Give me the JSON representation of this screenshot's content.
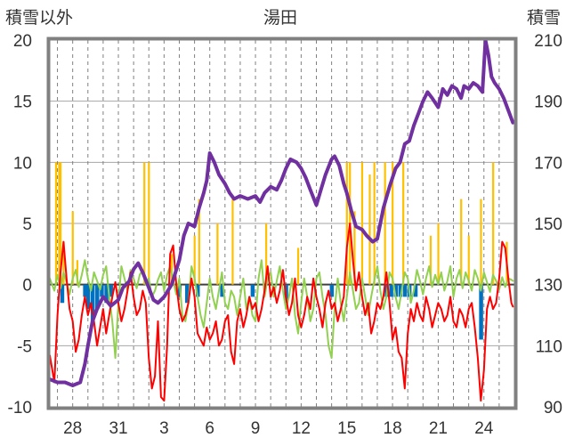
{
  "chart_data": {
    "type": "line",
    "title": "湯田",
    "y_left_label": "積雪以外",
    "y_right_label": "積雪",
    "y_left_range": [
      -10,
      20
    ],
    "y_right_range": [
      90,
      210
    ],
    "y_left_ticks": [
      "20",
      "15",
      "10",
      "5",
      "0",
      "-5",
      "-10"
    ],
    "y_right_ticks": [
      "210",
      "190",
      "170",
      "150",
      "130",
      "110",
      "90"
    ],
    "x_range": [
      26.5,
      57.0
    ],
    "x_ticks": [
      {
        "label": "28",
        "x": 28
      },
      {
        "label": "31",
        "x": 31
      },
      {
        "label": "3",
        "x": 34
      },
      {
        "label": "6",
        "x": 37
      },
      {
        "label": "9",
        "x": 40
      },
      {
        "label": "12",
        "x": 43
      },
      {
        "label": "15",
        "x": 46
      },
      {
        "label": "18",
        "x": 49
      },
      {
        "label": "21",
        "x": 52
      },
      {
        "label": "24",
        "x": 55
      }
    ],
    "grid": true,
    "colors": {
      "snow_depth": "#7030a0",
      "temperature": "#ff0000",
      "snow_change": "#92d050",
      "precip": "#ffc000",
      "negative_bar": "#0070c0",
      "frame": "#808080"
    },
    "series": [
      {
        "key": "snow_depth",
        "axis": "right",
        "x": [
          26.5,
          27.0,
          27.5,
          28.0,
          28.5,
          28.8,
          29.0,
          29.3,
          29.6,
          30.0,
          30.5,
          31.0,
          31.3,
          31.7,
          32.0,
          32.3,
          32.6,
          33.0,
          33.3,
          33.6,
          34.0,
          34.5,
          35.0,
          35.3,
          35.6,
          36.0,
          36.3,
          36.6,
          36.8,
          37.0,
          37.3,
          37.6,
          38.0,
          38.3,
          38.6,
          39.0,
          39.5,
          40.0,
          40.3,
          40.6,
          41.0,
          41.4,
          41.7,
          42.0,
          42.3,
          42.7,
          43.0,
          43.3,
          43.6,
          44.0,
          44.3,
          44.6,
          45.0,
          45.2,
          45.5,
          45.8,
          46.0,
          46.3,
          46.6,
          47.0,
          47.3,
          47.7,
          48.0,
          48.4,
          48.8,
          49.2,
          49.5,
          49.8,
          50.1,
          50.4,
          50.7,
          51.0,
          51.3,
          51.6,
          52.0,
          52.3,
          52.6,
          52.9,
          53.2,
          53.5,
          53.7,
          54.0,
          54.3,
          54.6,
          54.9,
          55.1,
          55.3,
          55.5,
          55.7,
          56.0,
          56.3,
          56.6,
          56.9
        ],
        "values": [
          99,
          98,
          98,
          97,
          98,
          104,
          110,
          118,
          122,
          126,
          123,
          125,
          129,
          131,
          135,
          137,
          134,
          129,
          125,
          124,
          126,
          130,
          138,
          146,
          150,
          149,
          155,
          160,
          164,
          173,
          170,
          166,
          163,
          160,
          158,
          159,
          158,
          159,
          157,
          160,
          162,
          161,
          164,
          168,
          171,
          170,
          168,
          165,
          161,
          156,
          161,
          166,
          171,
          172,
          169,
          163,
          160,
          154,
          149,
          148,
          146,
          144,
          145,
          155,
          162,
          168,
          170,
          176,
          177,
          182,
          186,
          190,
          193,
          191,
          188,
          194,
          192,
          195,
          194,
          191,
          195,
          194,
          196,
          195,
          193,
          210,
          205,
          198,
          196,
          194,
          191,
          187,
          183
        ]
      },
      {
        "key": "temperature",
        "axis": "left",
        "x": [
          26.5,
          26.8,
          27.0,
          27.2,
          27.4,
          27.6,
          27.8,
          28.0,
          28.2,
          28.4,
          28.6,
          28.8,
          29.0,
          29.2,
          29.4,
          29.6,
          29.8,
          30.0,
          30.2,
          30.4,
          30.6,
          30.8,
          31.0,
          31.2,
          31.4,
          31.6,
          31.8,
          32.0,
          32.2,
          32.4,
          32.6,
          32.8,
          33.0,
          33.2,
          33.4,
          33.6,
          33.8,
          34.0,
          34.2,
          34.4,
          34.6,
          34.8,
          35.0,
          35.2,
          35.4,
          35.6,
          35.8,
          36.0,
          36.2,
          36.4,
          36.6,
          36.8,
          37.0,
          37.2,
          37.4,
          37.6,
          37.8,
          38.0,
          38.2,
          38.4,
          38.6,
          38.8,
          39.0,
          39.2,
          39.4,
          39.6,
          39.8,
          40.0,
          40.2,
          40.4,
          40.6,
          40.8,
          41.0,
          41.2,
          41.4,
          41.6,
          41.8,
          42.0,
          42.2,
          42.4,
          42.6,
          42.8,
          43.0,
          43.2,
          43.4,
          43.6,
          43.8,
          44.0,
          44.2,
          44.4,
          44.6,
          44.8,
          45.0,
          45.2,
          45.4,
          45.6,
          45.8,
          46.0,
          46.2,
          46.4,
          46.6,
          46.8,
          47.0,
          47.2,
          47.4,
          47.6,
          47.8,
          48.0,
          48.2,
          48.4,
          48.6,
          48.8,
          49.0,
          49.2,
          49.4,
          49.6,
          49.8,
          50.0,
          50.2,
          50.4,
          50.6,
          50.8,
          51.0,
          51.2,
          51.4,
          51.6,
          51.8,
          52.0,
          52.2,
          52.4,
          52.6,
          52.8,
          53.0,
          53.2,
          53.4,
          53.6,
          53.8,
          54.0,
          54.2,
          54.4,
          54.6,
          54.8,
          55.0,
          55.2,
          55.4,
          55.6,
          55.8,
          56.0,
          56.2,
          56.4,
          56.6,
          56.8,
          56.9
        ],
        "values": [
          -5.8,
          -8.0,
          -2.5,
          1.0,
          3.5,
          0.5,
          -2.0,
          -3.0,
          -5.5,
          -4.5,
          -2.5,
          -1.0,
          -2.5,
          -1.5,
          -3.0,
          -5.0,
          -3.5,
          -2.0,
          -4.0,
          -2.5,
          -1.0,
          0.2,
          -1.5,
          -3.0,
          -2.0,
          -0.5,
          1.0,
          -1.0,
          -2.5,
          -2.0,
          -0.5,
          -1.5,
          -6.0,
          -8.5,
          -7.5,
          -3.0,
          -9.2,
          -9.5,
          -5.0,
          2.5,
          3.2,
          0.0,
          -2.0,
          -3.0,
          -2.5,
          -1.5,
          0.5,
          -1.0,
          -4.0,
          -4.5,
          -5.0,
          -3.5,
          -4.5,
          -4.0,
          -3.0,
          -5.0,
          -4.5,
          -3.0,
          -2.5,
          -5.5,
          -6.5,
          -3.0,
          -2.0,
          -3.5,
          -2.5,
          -1.0,
          -2.0,
          -1.5,
          -3.0,
          -2.0,
          -0.5,
          1.5,
          -1.0,
          -0.2,
          -1.5,
          -0.5,
          1.2,
          -1.0,
          -2.5,
          -1.5,
          0.5,
          -2.5,
          -3.5,
          -2.5,
          -1.0,
          -2.0,
          0.5,
          -1.0,
          -2.0,
          -3.5,
          -1.5,
          -0.5,
          -2.0,
          -1.5,
          -3.0,
          -2.0,
          -1.0,
          3.0,
          5.0,
          2.0,
          -0.5,
          1.0,
          -1.0,
          -2.5,
          -1.5,
          -4.0,
          -3.0,
          -1.5,
          -2.0,
          -1.0,
          1.0,
          -1.5,
          -4.5,
          -3.5,
          -5.5,
          -6.0,
          -8.5,
          -4.0,
          -2.0,
          -3.0,
          -1.5,
          -2.5,
          -3.0,
          -1.0,
          -2.0,
          -3.5,
          -2.5,
          -1.5,
          -2.0,
          -3.0,
          -2.5,
          -1.0,
          -3.0,
          -3.5,
          -2.0,
          -2.5,
          -3.5,
          -2.0,
          -1.5,
          -3.5,
          -6.0,
          -9.5,
          -7.0,
          -2.0,
          -1.0,
          -2.0,
          -1.5,
          0.5,
          3.5,
          3.0,
          0.5,
          -1.5,
          -1.8
        ]
      },
      {
        "key": "snow_change",
        "axis": "left",
        "x": [
          26.5,
          26.8,
          27.0,
          27.2,
          27.4,
          27.6,
          27.8,
          28.0,
          28.2,
          28.4,
          28.6,
          28.8,
          29.0,
          29.2,
          29.4,
          29.6,
          29.8,
          30.0,
          30.2,
          30.4,
          30.6,
          30.8,
          31.0,
          31.2,
          31.4,
          31.6,
          31.8,
          32.0,
          32.2,
          32.4,
          32.6,
          32.8,
          33.0,
          33.2,
          33.4,
          33.6,
          33.8,
          34.0,
          34.2,
          34.4,
          34.6,
          34.8,
          35.0,
          35.2,
          35.4,
          35.6,
          35.8,
          36.0,
          36.2,
          36.4,
          36.6,
          36.8,
          37.0,
          37.2,
          37.4,
          37.6,
          37.8,
          38.0,
          38.2,
          38.4,
          38.6,
          38.8,
          39.0,
          39.2,
          39.4,
          39.6,
          39.8,
          40.0,
          40.2,
          40.4,
          40.6,
          40.8,
          41.0,
          41.2,
          41.4,
          41.6,
          41.8,
          42.0,
          42.2,
          42.4,
          42.6,
          42.8,
          43.0,
          43.2,
          43.4,
          43.6,
          43.8,
          44.0,
          44.2,
          44.4,
          44.6,
          44.8,
          45.0,
          45.2,
          45.4,
          45.6,
          45.8,
          46.0,
          46.2,
          46.4,
          46.6,
          46.8,
          47.0,
          47.2,
          47.4,
          47.6,
          47.8,
          48.0,
          48.2,
          48.4,
          48.6,
          48.8,
          49.0,
          49.2,
          49.4,
          49.6,
          49.8,
          50.0,
          50.2,
          50.4,
          50.6,
          50.8,
          51.0,
          51.2,
          51.4,
          51.6,
          51.8,
          52.0,
          52.2,
          52.4,
          52.6,
          52.8,
          53.0,
          53.2,
          53.4,
          53.6,
          53.8,
          54.0,
          54.2,
          54.4,
          54.6,
          54.8,
          55.0,
          55.2,
          55.4,
          55.6,
          55.8,
          56.0,
          56.2,
          56.4,
          56.6,
          56.8,
          56.9
        ],
        "values": [
          0.5,
          -0.5,
          0.8,
          -0.3,
          1.0,
          0.2,
          -0.8,
          0.5,
          1.2,
          -0.2,
          0.8,
          2.0,
          0.5,
          -0.5,
          1.0,
          0.3,
          -0.4,
          0.8,
          1.5,
          -1.0,
          -3.0,
          -6.0,
          -1.5,
          1.5,
          0.5,
          -0.5,
          1.2,
          0.5,
          -0.3,
          0.8,
          1.2,
          0.0,
          0.5,
          -1.0,
          -0.5,
          0.4,
          1.0,
          -0.5,
          0.8,
          1.5,
          0.3,
          -0.8,
          0.5,
          -2.5,
          -3.0,
          -1.5,
          1.5,
          0.5,
          -1.0,
          -2.5,
          -3.5,
          -1.5,
          0.5,
          -1.0,
          -2.0,
          -0.5,
          1.0,
          -1.5,
          -2.0,
          -0.5,
          -1.0,
          -2.5,
          -1.0,
          0.5,
          -2.0,
          -1.0,
          -2.5,
          -3.0,
          0.5,
          2.0,
          -1.0,
          0.5,
          1.0,
          -1.0,
          0.3,
          1.5,
          -0.5,
          -2.0,
          -1.0,
          0.5,
          -2.5,
          -4.0,
          -1.5,
          0.5,
          -1.0,
          -3.0,
          -2.0,
          0.5,
          1.0,
          -1.0,
          -2.5,
          -5.0,
          -6.0,
          -2.0,
          0.5,
          -1.5,
          -3.0,
          -1.0,
          1.0,
          -0.5,
          -2.0,
          -1.5,
          0.5,
          -1.0,
          -2.5,
          -1.0,
          0.3,
          1.5,
          -0.5,
          -2.0,
          -1.0,
          1.0,
          0.5,
          -1.0,
          -2.0,
          -0.5,
          1.0,
          0.5,
          -1.5,
          -0.5,
          1.2,
          0.3,
          -0.8,
          0.5,
          1.5,
          -0.2,
          0.8,
          0.0,
          1.0,
          -0.5,
          0.3,
          1.5,
          -1.0,
          0.5,
          1.2,
          -0.3,
          1.0,
          0.3,
          -0.5,
          1.2,
          0.5,
          -0.5,
          1.0,
          0.2,
          -0.6,
          0.8,
          0.3,
          -0.4,
          0.6,
          -0.2,
          0.5,
          0.4,
          0.3
        ]
      }
    ],
    "precip_bars": [
      {
        "x": 26.9,
        "value": 10.0
      },
      {
        "x": 27.1,
        "value": 10.0
      },
      {
        "x": 27.2,
        "value": 10.0
      },
      {
        "x": 27.4,
        "value": 3.5
      },
      {
        "x": 28.0,
        "value": 6.0
      },
      {
        "x": 28.3,
        "value": 2.0
      },
      {
        "x": 32.7,
        "value": 10.0
      },
      {
        "x": 33.0,
        "value": 10.0
      },
      {
        "x": 34.5,
        "value": 2.5
      },
      {
        "x": 36.0,
        "value": 4.0
      },
      {
        "x": 36.3,
        "value": 7.0
      },
      {
        "x": 37.5,
        "value": 5.0
      },
      {
        "x": 38.5,
        "value": 7.0
      },
      {
        "x": 40.7,
        "value": 5.0
      },
      {
        "x": 42.8,
        "value": 3.0
      },
      {
        "x": 46.0,
        "value": 10.0
      },
      {
        "x": 46.2,
        "value": 10.0
      },
      {
        "x": 46.5,
        "value": 6.0
      },
      {
        "x": 47.0,
        "value": 10.0
      },
      {
        "x": 47.5,
        "value": 9.0
      },
      {
        "x": 47.8,
        "value": 10.0
      },
      {
        "x": 48.5,
        "value": 10.0
      },
      {
        "x": 49.0,
        "value": 10.0
      },
      {
        "x": 49.7,
        "value": 10.0
      },
      {
        "x": 51.5,
        "value": 4.0
      },
      {
        "x": 52.0,
        "value": 5.0
      },
      {
        "x": 53.5,
        "value": 7.0
      },
      {
        "x": 54.0,
        "value": 4.0
      },
      {
        "x": 54.8,
        "value": 7.0
      },
      {
        "x": 55.6,
        "value": 10.0
      },
      {
        "x": 56.5,
        "value": 3.5
      }
    ],
    "negative_bars": [
      {
        "x": 27.3,
        "value": -1.5
      },
      {
        "x": 28.8,
        "value": -1.0
      },
      {
        "x": 29.0,
        "value": -2.0
      },
      {
        "x": 29.3,
        "value": -3.0
      },
      {
        "x": 29.6,
        "value": -2.0
      },
      {
        "x": 29.9,
        "value": -1.0
      },
      {
        "x": 30.2,
        "value": -1.5
      },
      {
        "x": 30.5,
        "value": -1.0
      },
      {
        "x": 35.0,
        "value": -1.0
      },
      {
        "x": 35.5,
        "value": -1.5
      },
      {
        "x": 36.2,
        "value": -1.0
      },
      {
        "x": 37.8,
        "value": -1.0
      },
      {
        "x": 39.8,
        "value": -1.0
      },
      {
        "x": 42.0,
        "value": -1.5
      },
      {
        "x": 45.0,
        "value": -1.0
      },
      {
        "x": 48.6,
        "value": -1.0
      },
      {
        "x": 48.9,
        "value": -1.0
      },
      {
        "x": 49.2,
        "value": -1.0
      },
      {
        "x": 49.5,
        "value": -1.0
      },
      {
        "x": 49.8,
        "value": -1.0
      },
      {
        "x": 50.1,
        "value": -1.0
      },
      {
        "x": 50.5,
        "value": -1.0
      },
      {
        "x": 54.8,
        "value": -4.5
      }
    ]
  }
}
